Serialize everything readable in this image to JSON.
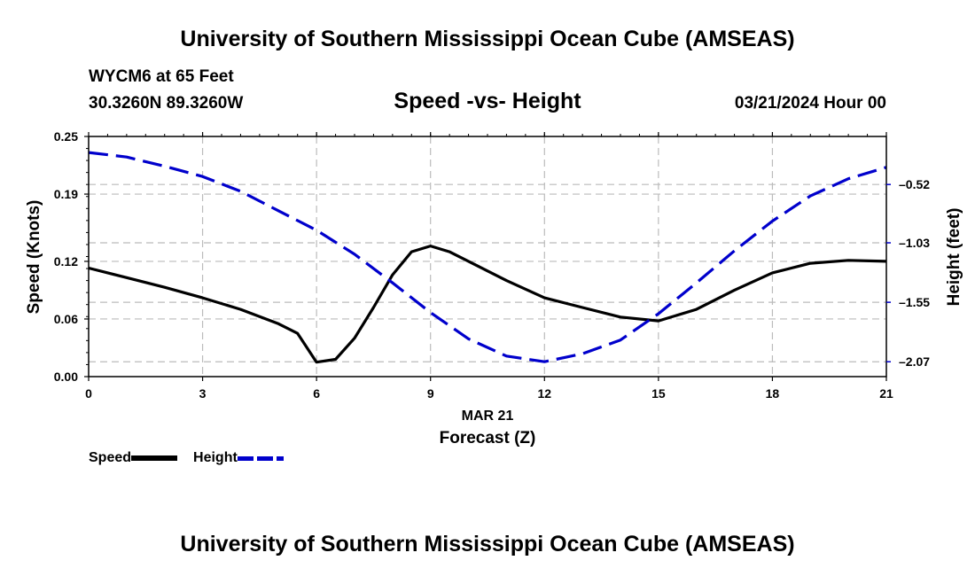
{
  "header": {
    "title": "University of Southern Mississippi Ocean Cube (AMSEAS)",
    "station": "WYCM6 at 65 Feet",
    "location": "30.3260N  89.3260W",
    "subtitle": "Speed -vs- Height",
    "date": "03/21/2024 Hour 00"
  },
  "footer": {
    "title": "University of Southern Mississippi Ocean Cube (AMSEAS)"
  },
  "legend": {
    "speed_label": "Speed",
    "height_label": "Height"
  },
  "colors": {
    "speed": "#000000",
    "height": "#0000cc",
    "grid": "#bbbbbb"
  },
  "chart_data": {
    "type": "line",
    "title": "Speed -vs- Height",
    "xlabel_date": "MAR 21",
    "xlabel": "Forecast (Z)",
    "ylabel": "Speed (Knots)",
    "y2label": "Height (feet)",
    "xlim": [
      0,
      21
    ],
    "ylim": [
      0,
      0.25
    ],
    "y2lim": [
      -2.2,
      -0.1
    ],
    "x_ticks": [
      0,
      3,
      6,
      9,
      12,
      15,
      18,
      21
    ],
    "x_tick_labels": [
      "0",
      "3",
      "6",
      "9",
      "12",
      "15",
      "18",
      "21"
    ],
    "y_ticks": [
      0,
      0.06,
      0.12,
      0.19,
      0.25
    ],
    "y_tick_labels": [
      "0.00",
      "0.06",
      "0.12",
      "0.19",
      "0.25"
    ],
    "y2_ticks": [
      -2.07,
      -1.55,
      -1.03,
      -0.52
    ],
    "y2_tick_labels": [
      "–2.07",
      "–1.55",
      "–1.03",
      "–0.52"
    ],
    "grid": true,
    "series": [
      {
        "name": "Speed",
        "axis": "left",
        "style": "solid",
        "x": [
          0,
          1,
          2,
          3,
          4,
          5,
          5.5,
          6,
          6.5,
          7,
          7.5,
          8,
          8.5,
          9,
          9.5,
          10,
          11,
          12,
          13,
          14,
          15,
          16,
          17,
          18,
          19,
          20,
          21
        ],
        "values": [
          0.113,
          0.103,
          0.093,
          0.082,
          0.07,
          0.055,
          0.045,
          0.015,
          0.018,
          0.04,
          0.072,
          0.106,
          0.13,
          0.136,
          0.13,
          0.12,
          0.1,
          0.082,
          0.072,
          0.062,
          0.058,
          0.07,
          0.09,
          0.108,
          0.118,
          0.121,
          0.12
        ]
      },
      {
        "name": "Height",
        "axis": "right",
        "style": "dashed",
        "x": [
          0,
          1,
          2,
          3,
          4,
          5,
          6,
          7,
          8,
          9,
          10,
          11,
          12,
          13,
          14,
          15,
          16,
          17,
          18,
          19,
          20,
          21
        ],
        "values": [
          -0.24,
          -0.28,
          -0.36,
          -0.45,
          -0.58,
          -0.75,
          -0.92,
          -1.13,
          -1.38,
          -1.64,
          -1.87,
          -2.02,
          -2.07,
          -2.0,
          -1.88,
          -1.65,
          -1.38,
          -1.1,
          -0.84,
          -0.62,
          -0.47,
          -0.37
        ]
      }
    ]
  }
}
